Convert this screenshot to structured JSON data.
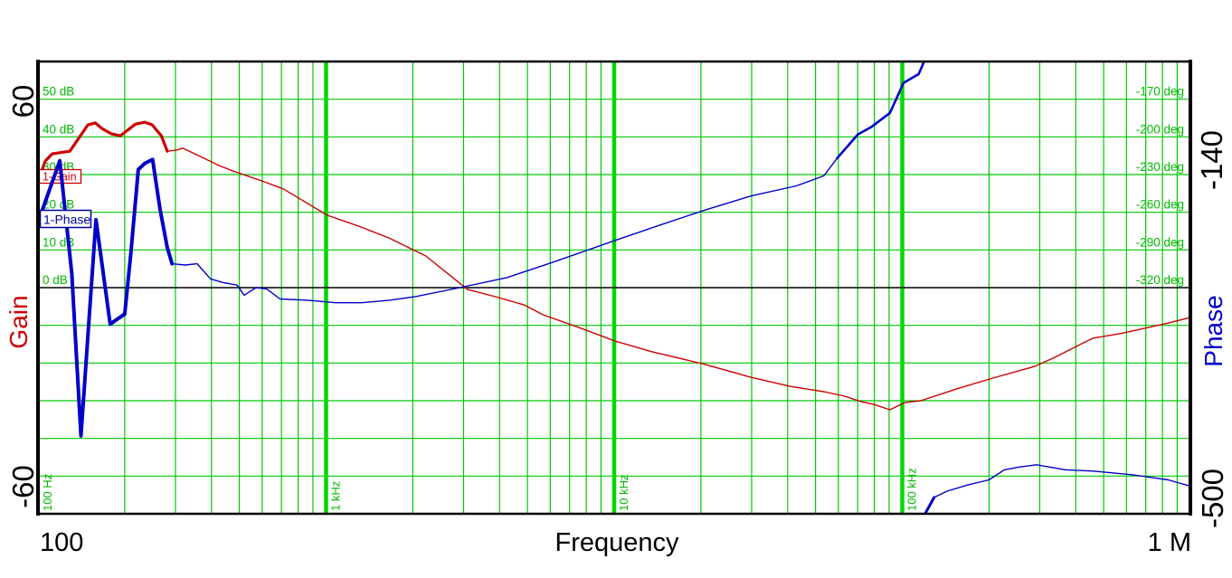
{
  "axes": {
    "x": {
      "title": "Frequency",
      "min_label": "100",
      "max_label": "1 M",
      "scale": "log",
      "decade_lines": [
        {
          "f": 100,
          "label": "100 Hz"
        },
        {
          "f": 1000,
          "label": "1 kHz"
        },
        {
          "f": 10000,
          "label": "10 kHz"
        },
        {
          "f": 100000,
          "label": "100 kHz"
        }
      ]
    },
    "gain": {
      "title": "Gain",
      "max_label": "60",
      "min_label": "-60",
      "unit": "dB",
      "inner_ticks": [
        {
          "db": 50,
          "label": "50 dB"
        },
        {
          "db": 40,
          "label": "40 dB"
        },
        {
          "db": 30,
          "label": "30 dB"
        },
        {
          "db": 20,
          "label": "20 dB"
        },
        {
          "db": 10,
          "label": "10 dB"
        },
        {
          "db": 0,
          "label": "0 dB"
        }
      ]
    },
    "phase": {
      "title": "Phase",
      "max_label": "-140",
      "min_label": "-500",
      "unit": "deg",
      "inner_ticks": [
        {
          "deg": -170,
          "label": "-170 deg"
        },
        {
          "deg": -200,
          "label": "-200 deg"
        },
        {
          "deg": -230,
          "label": "-230 deg"
        },
        {
          "deg": -260,
          "label": "-260 deg"
        },
        {
          "deg": -290,
          "label": "-290 deg"
        },
        {
          "deg": -320,
          "label": "-320 deg"
        }
      ]
    }
  },
  "legend": [
    {
      "label": "1-Gain",
      "color": "#CC0000"
    },
    {
      "label": "1-Phase",
      "color": "#000099"
    }
  ],
  "colors": {
    "background": "#FFFFFF",
    "grid_minor": "#00C800",
    "grid_major": "#00D800",
    "tick_text": "#00B800",
    "gain_curve": "#CC0000",
    "phase_curve": "#0000C8",
    "phase_title": "#0000CC",
    "axis_black": "#000000"
  },
  "chart_data": {
    "type": "line",
    "title": "",
    "x": {
      "label": "Frequency",
      "scale": "log",
      "range_hz": [
        100,
        1000000
      ]
    },
    "y_left": {
      "label": "Gain",
      "unit": "dB",
      "range": [
        -60,
        60
      ],
      "major_step": 10
    },
    "y_right": {
      "label": "Phase",
      "unit": "deg",
      "range": [
        -500,
        -140
      ],
      "major_step": 30
    },
    "grid": "on",
    "zero_db_line": true,
    "series": [
      {
        "name": "1-Gain",
        "axis": "left",
        "color": "#CC0000",
        "points": [
          [
            100,
            28.3
          ],
          [
            106,
            33.6
          ],
          [
            112,
            35.5
          ],
          [
            129,
            36.2
          ],
          [
            149,
            43.2
          ],
          [
            158,
            43.7
          ],
          [
            167,
            42.2
          ],
          [
            180,
            40.8
          ],
          [
            193,
            40.3
          ],
          [
            218,
            43.4
          ],
          [
            235,
            43.9
          ],
          [
            249,
            43.2
          ],
          [
            268,
            40.3
          ],
          [
            281,
            36.2
          ],
          [
            302,
            36.5
          ],
          [
            318,
            37
          ],
          [
            390,
            33.8
          ],
          [
            425,
            32.4
          ],
          [
            473,
            31
          ],
          [
            600,
            28.3
          ],
          [
            710,
            26.2
          ],
          [
            1010,
            19.2
          ],
          [
            1300,
            16.3
          ],
          [
            1650,
            13.2
          ],
          [
            2220,
            8.4
          ],
          [
            3100,
            -0.5
          ],
          [
            3870,
            -2.4
          ],
          [
            4880,
            -4.6
          ],
          [
            5660,
            -7.2
          ],
          [
            7560,
            -10.6
          ],
          [
            10100,
            -14.2
          ],
          [
            13500,
            -17
          ],
          [
            20300,
            -20.2
          ],
          [
            29900,
            -23.8
          ],
          [
            40900,
            -26.2
          ],
          [
            53400,
            -27.6
          ],
          [
            63100,
            -28.8
          ],
          [
            71600,
            -30.2
          ],
          [
            79800,
            -31
          ],
          [
            90600,
            -32.4
          ],
          [
            102000,
            -30.5
          ],
          [
            116000,
            -30
          ],
          [
            154000,
            -26.9
          ],
          [
            206000,
            -24
          ],
          [
            288000,
            -20.9
          ],
          [
            338000,
            -18.5
          ],
          [
            406000,
            -15.4
          ],
          [
            460000,
            -13.4
          ],
          [
            571000,
            -12.2
          ],
          [
            711000,
            -10.6
          ],
          [
            837000,
            -9.4
          ],
          [
            1000000,
            -7.9
          ]
        ]
      },
      {
        "name": "1-Phase",
        "axis": "right",
        "color": "#0000C8",
        "points": [
          [
            100,
            -268
          ],
          [
            119,
            -219
          ],
          [
            131,
            -309
          ],
          [
            141,
            -438
          ],
          [
            159,
            -266
          ],
          [
            178,
            -349
          ],
          [
            200,
            -341
          ],
          [
            210,
            -293
          ],
          [
            223,
            -226
          ],
          [
            235,
            -221
          ],
          [
            250,
            -218
          ],
          [
            265,
            -257
          ],
          [
            281,
            -288
          ],
          [
            292,
            -301
          ],
          [
            324,
            -302
          ],
          [
            357,
            -301
          ],
          [
            397,
            -313
          ],
          [
            440,
            -316
          ],
          [
            491,
            -318
          ],
          [
            520,
            -326
          ],
          [
            572,
            -320
          ],
          [
            622,
            -321
          ],
          [
            692,
            -329
          ],
          [
            863,
            -330
          ],
          [
            1080,
            -332
          ],
          [
            1330,
            -332
          ],
          [
            1660,
            -330
          ],
          [
            2060,
            -327
          ],
          [
            2910,
            -320
          ],
          [
            4240,
            -312
          ],
          [
            6090,
            -300
          ],
          [
            10200,
            -282
          ],
          [
            14500,
            -270
          ],
          [
            20800,
            -258
          ],
          [
            29900,
            -247
          ],
          [
            42900,
            -239
          ],
          [
            53400,
            -231
          ],
          [
            59400,
            -217
          ],
          [
            70100,
            -198
          ],
          [
            78200,
            -192
          ],
          [
            90600,
            -181
          ],
          [
            101000,
            -157
          ],
          [
            114000,
            -150
          ],
          [
            119000,
            -140
          ]
        ],
        "points_after_wrap": [
          [
            120000,
            -500
          ],
          [
            129000,
            -487
          ],
          [
            143000,
            -482
          ],
          [
            169000,
            -477
          ],
          [
            200000,
            -473
          ],
          [
            226000,
            -465
          ],
          [
            252000,
            -463
          ],
          [
            292000,
            -461
          ],
          [
            369000,
            -465
          ],
          [
            460000,
            -466
          ],
          [
            631000,
            -469
          ],
          [
            837000,
            -473
          ],
          [
            1000000,
            -478
          ]
        ]
      }
    ]
  }
}
